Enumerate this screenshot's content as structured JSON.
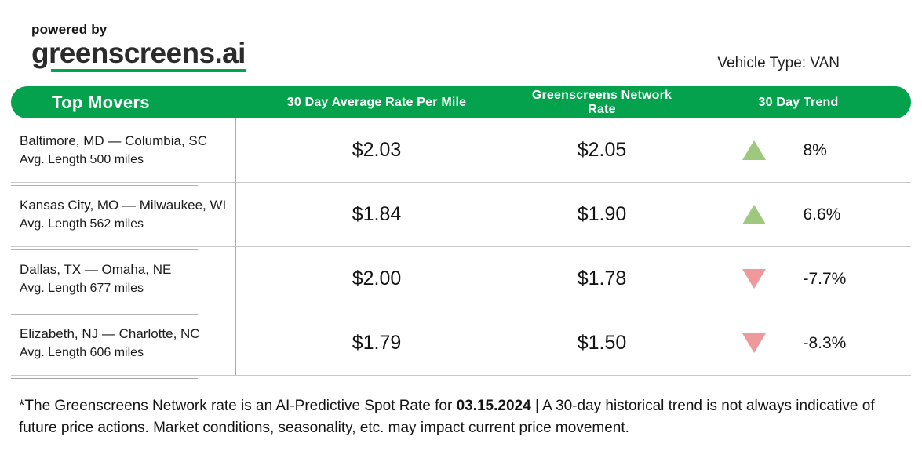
{
  "header": {
    "powered_by": "powered by",
    "brand": "greenscreens.ai",
    "vehicle_type": "Vehicle Type: VAN"
  },
  "table": {
    "columns": {
      "c1": "Top Movers",
      "c2": "30 Day Average Rate Per Mile",
      "c3": "Greenscreens Network Rate",
      "c4": "30 Day Trend"
    },
    "rows": [
      {
        "lane": "Baltimore, MD — Columbia, SC",
        "avg_length": "Avg. Length 500 miles",
        "avg_rate": "$2.03",
        "network_rate": "$2.05",
        "trend_direction": "up",
        "trend_pct": "8%"
      },
      {
        "lane": "Kansas City, MO — Milwaukee, WI",
        "avg_length": "Avg. Length 562 miles",
        "avg_rate": "$1.84",
        "network_rate": "$1.90",
        "trend_direction": "up",
        "trend_pct": "6.6%"
      },
      {
        "lane": "Dallas, TX — Omaha, NE",
        "avg_length": "Avg. Length 677 miles",
        "avg_rate": "$2.00",
        "network_rate": "$1.78",
        "trend_direction": "down",
        "trend_pct": "-7.7%"
      },
      {
        "lane": "Elizabeth, NJ — Charlotte, NC",
        "avg_length": "Avg. Length 606 miles",
        "avg_rate": "$1.79",
        "network_rate": "$1.50",
        "trend_direction": "down",
        "trend_pct": "-8.3%"
      }
    ]
  },
  "footer": {
    "pre": "*The Greenscreens Network rate is an AI-Predictive Spot Rate for ",
    "date": "03.15.2024",
    "post": " | A 30-day historical trend is not always indicative of future price actions. Market conditions, seasonality, etc. may impact current price movement."
  },
  "colors": {
    "brand_green": "#04a24d",
    "underline_green": "#00a651",
    "trend_up_green": "#9dc87e",
    "trend_down_red": "#ef999b",
    "text_dark": "#1f1f1f",
    "divider_gray": "#c9c9c9"
  },
  "icons": {
    "up": "trend-up-triangle-icon",
    "down": "trend-down-triangle-icon"
  },
  "chart_data": {
    "type": "table",
    "title": "Top Movers",
    "vehicle_type": "VAN",
    "columns": [
      "Top Movers",
      "30 Day Average Rate Per Mile",
      "Greenscreens Network Rate",
      "30 Day Trend"
    ],
    "rows": [
      {
        "lane": "Baltimore, MD — Columbia, SC",
        "avg_length_miles": 500,
        "avg_rate_per_mile": 2.03,
        "network_rate": 2.05,
        "trend_pct": 8.0
      },
      {
        "lane": "Kansas City, MO — Milwaukee, WI",
        "avg_length_miles": 562,
        "avg_rate_per_mile": 1.84,
        "network_rate": 1.9,
        "trend_pct": 6.6
      },
      {
        "lane": "Dallas, TX — Omaha, NE",
        "avg_length_miles": 677,
        "avg_rate_per_mile": 2.0,
        "network_rate": 1.78,
        "trend_pct": -7.7
      },
      {
        "lane": "Elizabeth, NJ — Charlotte, NC",
        "avg_length_miles": 606,
        "avg_rate_per_mile": 1.79,
        "network_rate": 1.5,
        "trend_pct": -8.3
      }
    ],
    "spot_rate_date": "03.15.2024"
  }
}
